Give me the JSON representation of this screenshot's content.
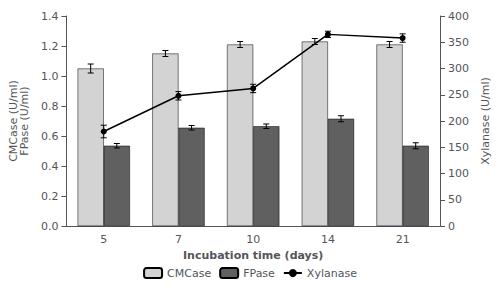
{
  "chart_data": {
    "type": "bar",
    "xlabel": "Incubation time (days)",
    "ylabel": "CMCase (U/ml)\nFPase (U/ml)",
    "y2label": "Xylanase (U/ml)",
    "categories": [
      "5",
      "7",
      "10",
      "14",
      "21"
    ],
    "series": [
      {
        "name": "CMCase",
        "type": "bar",
        "color": "#d3d3d3",
        "values": [
          1.05,
          1.15,
          1.21,
          1.23,
          1.21
        ],
        "errors": [
          0.03,
          0.02,
          0.02,
          0.02,
          0.02
        ]
      },
      {
        "name": "FPase",
        "type": "bar",
        "color": "#606060",
        "values": [
          0.535,
          0.655,
          0.665,
          0.715,
          0.535
        ],
        "errors": [
          0.015,
          0.015,
          0.015,
          0.02,
          0.02
        ]
      },
      {
        "name": "Xylanase",
        "type": "line",
        "axis": "y2",
        "color": "#000000",
        "marker": "circle",
        "values": [
          180,
          248,
          262,
          365,
          358
        ],
        "errors": [
          12,
          8,
          8,
          6,
          8
        ]
      }
    ],
    "ylim": [
      0,
      1.4
    ],
    "yticks": [
      {
        "value": 0,
        "label": "0.0"
      },
      0.2,
      0.4,
      0.6,
      0.8,
      {
        "value": 1,
        "label": "1.0"
      },
      1.2,
      1.4
    ],
    "y2lim": [
      0,
      400
    ],
    "y2ticks": [
      0,
      50,
      100,
      150,
      200,
      250,
      300,
      350,
      400
    ],
    "grid": false,
    "legend": "bottom"
  }
}
